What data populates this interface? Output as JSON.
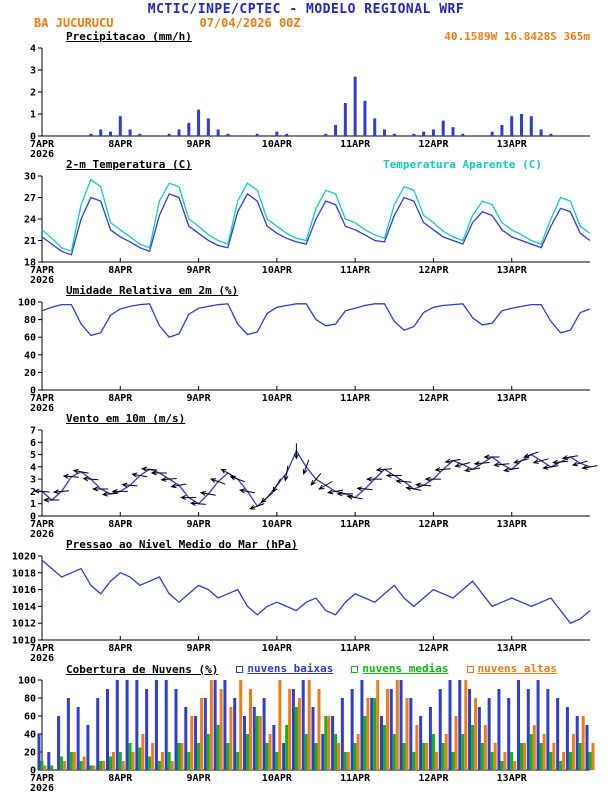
{
  "header": {
    "title": "MCTIC/INPE/CPTEC - MODELO REGIONAL WRF",
    "station": "BA JUCURUCU",
    "run": "07/04/2026 00Z",
    "location": "40.1589W 16.8428S 365m"
  },
  "colors": {
    "header_blue": "#2525c0",
    "orange": "#ee7d18",
    "line_blue": "#2e3fd0",
    "apparent_cyan": "#17c8be",
    "cloud_green": "#12b512",
    "axis_black": "#000000"
  },
  "x_axis": {
    "labels": [
      "7APR",
      "8APR",
      "9APR",
      "10APR",
      "11APR",
      "12APR",
      "13APR"
    ],
    "year": "2026",
    "hours_total": 168,
    "tick_hours": [
      0,
      24,
      48,
      72,
      96,
      120,
      144
    ]
  },
  "chart_data": [
    {
      "id": "precipitation",
      "type": "bar",
      "title": "Precipitacao (mm/h)",
      "ylim": [
        0,
        4
      ],
      "yticks": [
        0,
        1,
        2,
        3,
        4
      ],
      "step_hours": 3,
      "series": [
        {
          "name": "precipitacao",
          "color": "#2e3fd0",
          "values": [
            0,
            0,
            0,
            0,
            0,
            0.1,
            0.3,
            0.2,
            0.9,
            0.3,
            0.1,
            0,
            0,
            0.1,
            0.3,
            0.6,
            1.2,
            0.8,
            0.3,
            0.1,
            0,
            0,
            0.1,
            0,
            0.2,
            0.1,
            0,
            0,
            0,
            0.1,
            0.5,
            1.5,
            2.7,
            1.6,
            0.8,
            0.3,
            0.1,
            0,
            0.1,
            0.2,
            0.3,
            0.7,
            0.4,
            0.1,
            0,
            0,
            0.2,
            0.5,
            0.9,
            1.0,
            0.9,
            0.3,
            0.1,
            0,
            0,
            0,
            0
          ]
        }
      ]
    },
    {
      "id": "temperature",
      "type": "line",
      "title": "2-m Temperatura (C)",
      "ylim": [
        18,
        30
      ],
      "yticks": [
        18,
        21,
        24,
        27,
        30
      ],
      "step_hours": 3,
      "series": [
        {
          "name": "2-m Temperatura (C)",
          "color": "#2e3fd0",
          "values": [
            21.5,
            20.5,
            19.5,
            19.0,
            24.0,
            27.0,
            26.5,
            22.5,
            21.5,
            20.8,
            20.0,
            19.5,
            24.5,
            27.5,
            27.0,
            23.0,
            22.0,
            21.0,
            20.3,
            20.0,
            25.0,
            27.5,
            26.5,
            23.0,
            22.0,
            21.3,
            20.8,
            20.5,
            24.0,
            26.5,
            26.0,
            23.0,
            22.5,
            21.8,
            21.0,
            20.8,
            24.5,
            27.0,
            26.5,
            23.5,
            22.5,
            21.5,
            21.0,
            20.5,
            23.5,
            25.0,
            24.5,
            22.5,
            21.5,
            21.0,
            20.5,
            20.0,
            23.0,
            25.5,
            25.0,
            22.0,
            21.0
          ]
        },
        {
          "name": "Temperatura Aparente (C)",
          "color": "#17c8be",
          "values": [
            22.5,
            21.3,
            20.0,
            19.5,
            26.0,
            29.5,
            28.5,
            23.5,
            22.5,
            21.5,
            20.5,
            20.0,
            26.5,
            29.0,
            28.5,
            24.0,
            23.0,
            21.8,
            21.0,
            20.5,
            26.5,
            29.0,
            28.0,
            24.0,
            23.0,
            22.0,
            21.3,
            21.0,
            25.5,
            28.0,
            27.5,
            24.0,
            23.5,
            22.5,
            21.8,
            21.3,
            26.0,
            28.5,
            28.0,
            24.5,
            23.5,
            22.3,
            21.5,
            21.0,
            24.5,
            26.5,
            26.0,
            23.5,
            22.5,
            21.8,
            21.0,
            20.5,
            24.0,
            27.0,
            26.5,
            23.0,
            22.0
          ]
        }
      ]
    },
    {
      "id": "humidity",
      "type": "line",
      "title": "Umidade Relativa em 2m (%)",
      "ylim": [
        0,
        100
      ],
      "yticks": [
        0,
        20,
        40,
        60,
        80,
        100
      ],
      "step_hours": 3,
      "series": [
        {
          "name": "umidade relativa",
          "color": "#2e3fd0",
          "values": [
            90,
            94,
            97,
            97,
            75,
            62,
            65,
            85,
            92,
            95,
            97,
            98,
            73,
            60,
            64,
            86,
            93,
            95,
            97,
            98,
            75,
            63,
            66,
            87,
            94,
            96,
            98,
            98,
            80,
            73,
            75,
            90,
            93,
            96,
            98,
            98,
            78,
            68,
            72,
            88,
            94,
            96,
            97,
            98,
            82,
            74,
            76,
            90,
            93,
            95,
            97,
            97,
            78,
            65,
            68,
            88,
            92
          ]
        }
      ]
    },
    {
      "id": "wind",
      "type": "line",
      "title": "Vento em 10m (m/s)",
      "ylim": [
        0,
        7
      ],
      "yticks": [
        0,
        1,
        2,
        3,
        4,
        5,
        6,
        7
      ],
      "step_hours": 3,
      "series": [
        {
          "name": "velocidade do vento",
          "color": "#2e3fd0",
          "values": [
            2.0,
            1.3,
            2.0,
            3.2,
            3.6,
            3.0,
            2.2,
            1.8,
            2.0,
            2.5,
            3.3,
            3.8,
            3.5,
            3.0,
            2.5,
            1.5,
            1.0,
            1.8,
            2.8,
            3.5,
            3.0,
            2.0,
            0.8,
            1.5,
            2.5,
            3.5,
            5.3,
            4.0,
            3.0,
            2.5,
            2.0,
            1.8,
            1.5,
            2.2,
            3.0,
            3.8,
            3.3,
            2.8,
            2.2,
            2.5,
            3.0,
            3.8,
            4.5,
            4.2,
            3.8,
            4.3,
            4.8,
            4.2,
            3.8,
            4.5,
            5.0,
            4.5,
            4.0,
            4.4,
            4.8,
            4.3,
            4.0
          ]
        }
      ],
      "barbs": {
        "name": "direcao do vento (setas)",
        "color": "#000000",
        "angles_deg": [
          185,
          180,
          175,
          185,
          190,
          185,
          180,
          175,
          180,
          185,
          190,
          185,
          180,
          175,
          170,
          180,
          185,
          190,
          200,
          210,
          200,
          190,
          160,
          140,
          120,
          100,
          90,
          110,
          130,
          150,
          170,
          180,
          190,
          185,
          180,
          175,
          180,
          185,
          190,
          185,
          180,
          175,
          170,
          165,
          170,
          175,
          180,
          175,
          170,
          165,
          160,
          165,
          170,
          175,
          170,
          165,
          170
        ]
      }
    },
    {
      "id": "pressure",
      "type": "line",
      "title": "Pressao ao Nivel Medio do Mar (hPa)",
      "ylim": [
        1010,
        1020
      ],
      "yticks": [
        1010,
        1012,
        1014,
        1016,
        1018,
        1020
      ],
      "step_hours": 3,
      "series": [
        {
          "name": "pressao ao nivel medio do mar",
          "color": "#2e3fd0",
          "values": [
            1019.5,
            1018.5,
            1017.5,
            1018.0,
            1018.5,
            1016.5,
            1015.5,
            1017.0,
            1018.0,
            1017.5,
            1016.5,
            1017.0,
            1017.5,
            1015.5,
            1014.5,
            1015.5,
            1016.5,
            1016.0,
            1015.0,
            1015.5,
            1016.0,
            1014.0,
            1013.0,
            1014.0,
            1014.5,
            1014.0,
            1013.5,
            1014.5,
            1015.0,
            1013.5,
            1013.0,
            1014.5,
            1015.5,
            1015.0,
            1014.5,
            1015.5,
            1016.5,
            1015.0,
            1014.0,
            1015.0,
            1016.0,
            1015.5,
            1015.0,
            1016.0,
            1017.0,
            1015.5,
            1014.0,
            1014.5,
            1015.0,
            1014.5,
            1014.0,
            1014.5,
            1015.0,
            1013.5,
            1012.0,
            1012.5,
            1013.5
          ]
        }
      ]
    },
    {
      "id": "clouds",
      "type": "multibar",
      "title": "Cobertura de Nuvens (%)",
      "ylim": [
        0,
        100
      ],
      "yticks": [
        0,
        20,
        40,
        60,
        80,
        100
      ],
      "step_hours": 3,
      "legend": [
        {
          "label": "nuvens baixas",
          "color": "#2e3fd0"
        },
        {
          "label": "nuvens medias",
          "color": "#12b512"
        },
        {
          "label": "nuvens altas",
          "color": "#ee7d18"
        }
      ],
      "series": [
        {
          "name": "nuvens baixas",
          "color": "#2e3fd0",
          "values": [
            40,
            20,
            60,
            80,
            70,
            50,
            80,
            90,
            100,
            100,
            100,
            90,
            100,
            100,
            90,
            70,
            60,
            80,
            100,
            100,
            80,
            60,
            70,
            80,
            50,
            30,
            90,
            100,
            70,
            40,
            60,
            80,
            90,
            100,
            80,
            60,
            90,
            100,
            80,
            60,
            70,
            90,
            100,
            100,
            90,
            70,
            80,
            90,
            80,
            100,
            90,
            100,
            90,
            80,
            70,
            60,
            50
          ]
        },
        {
          "name": "nuvens medias",
          "color": "#12b512",
          "values": [
            10,
            5,
            15,
            20,
            10,
            5,
            10,
            15,
            20,
            30,
            25,
            15,
            10,
            20,
            30,
            20,
            30,
            40,
            50,
            30,
            20,
            40,
            60,
            30,
            20,
            50,
            70,
            40,
            30,
            60,
            40,
            20,
            30,
            60,
            80,
            50,
            40,
            30,
            20,
            30,
            40,
            30,
            20,
            40,
            50,
            30,
            20,
            10,
            20,
            30,
            40,
            30,
            20,
            10,
            20,
            30,
            20
          ]
        },
        {
          "name": "nuvens altas",
          "color": "#ee7d18",
          "values": [
            5,
            0,
            10,
            20,
            15,
            5,
            10,
            20,
            10,
            20,
            40,
            30,
            20,
            10,
            30,
            60,
            80,
            100,
            90,
            70,
            100,
            90,
            60,
            40,
            100,
            90,
            80,
            100,
            90,
            60,
            30,
            20,
            40,
            80,
            100,
            90,
            100,
            80,
            50,
            30,
            20,
            40,
            60,
            100,
            80,
            50,
            30,
            20,
            10,
            30,
            50,
            40,
            30,
            20,
            40,
            60,
            30
          ]
        }
      ]
    }
  ]
}
